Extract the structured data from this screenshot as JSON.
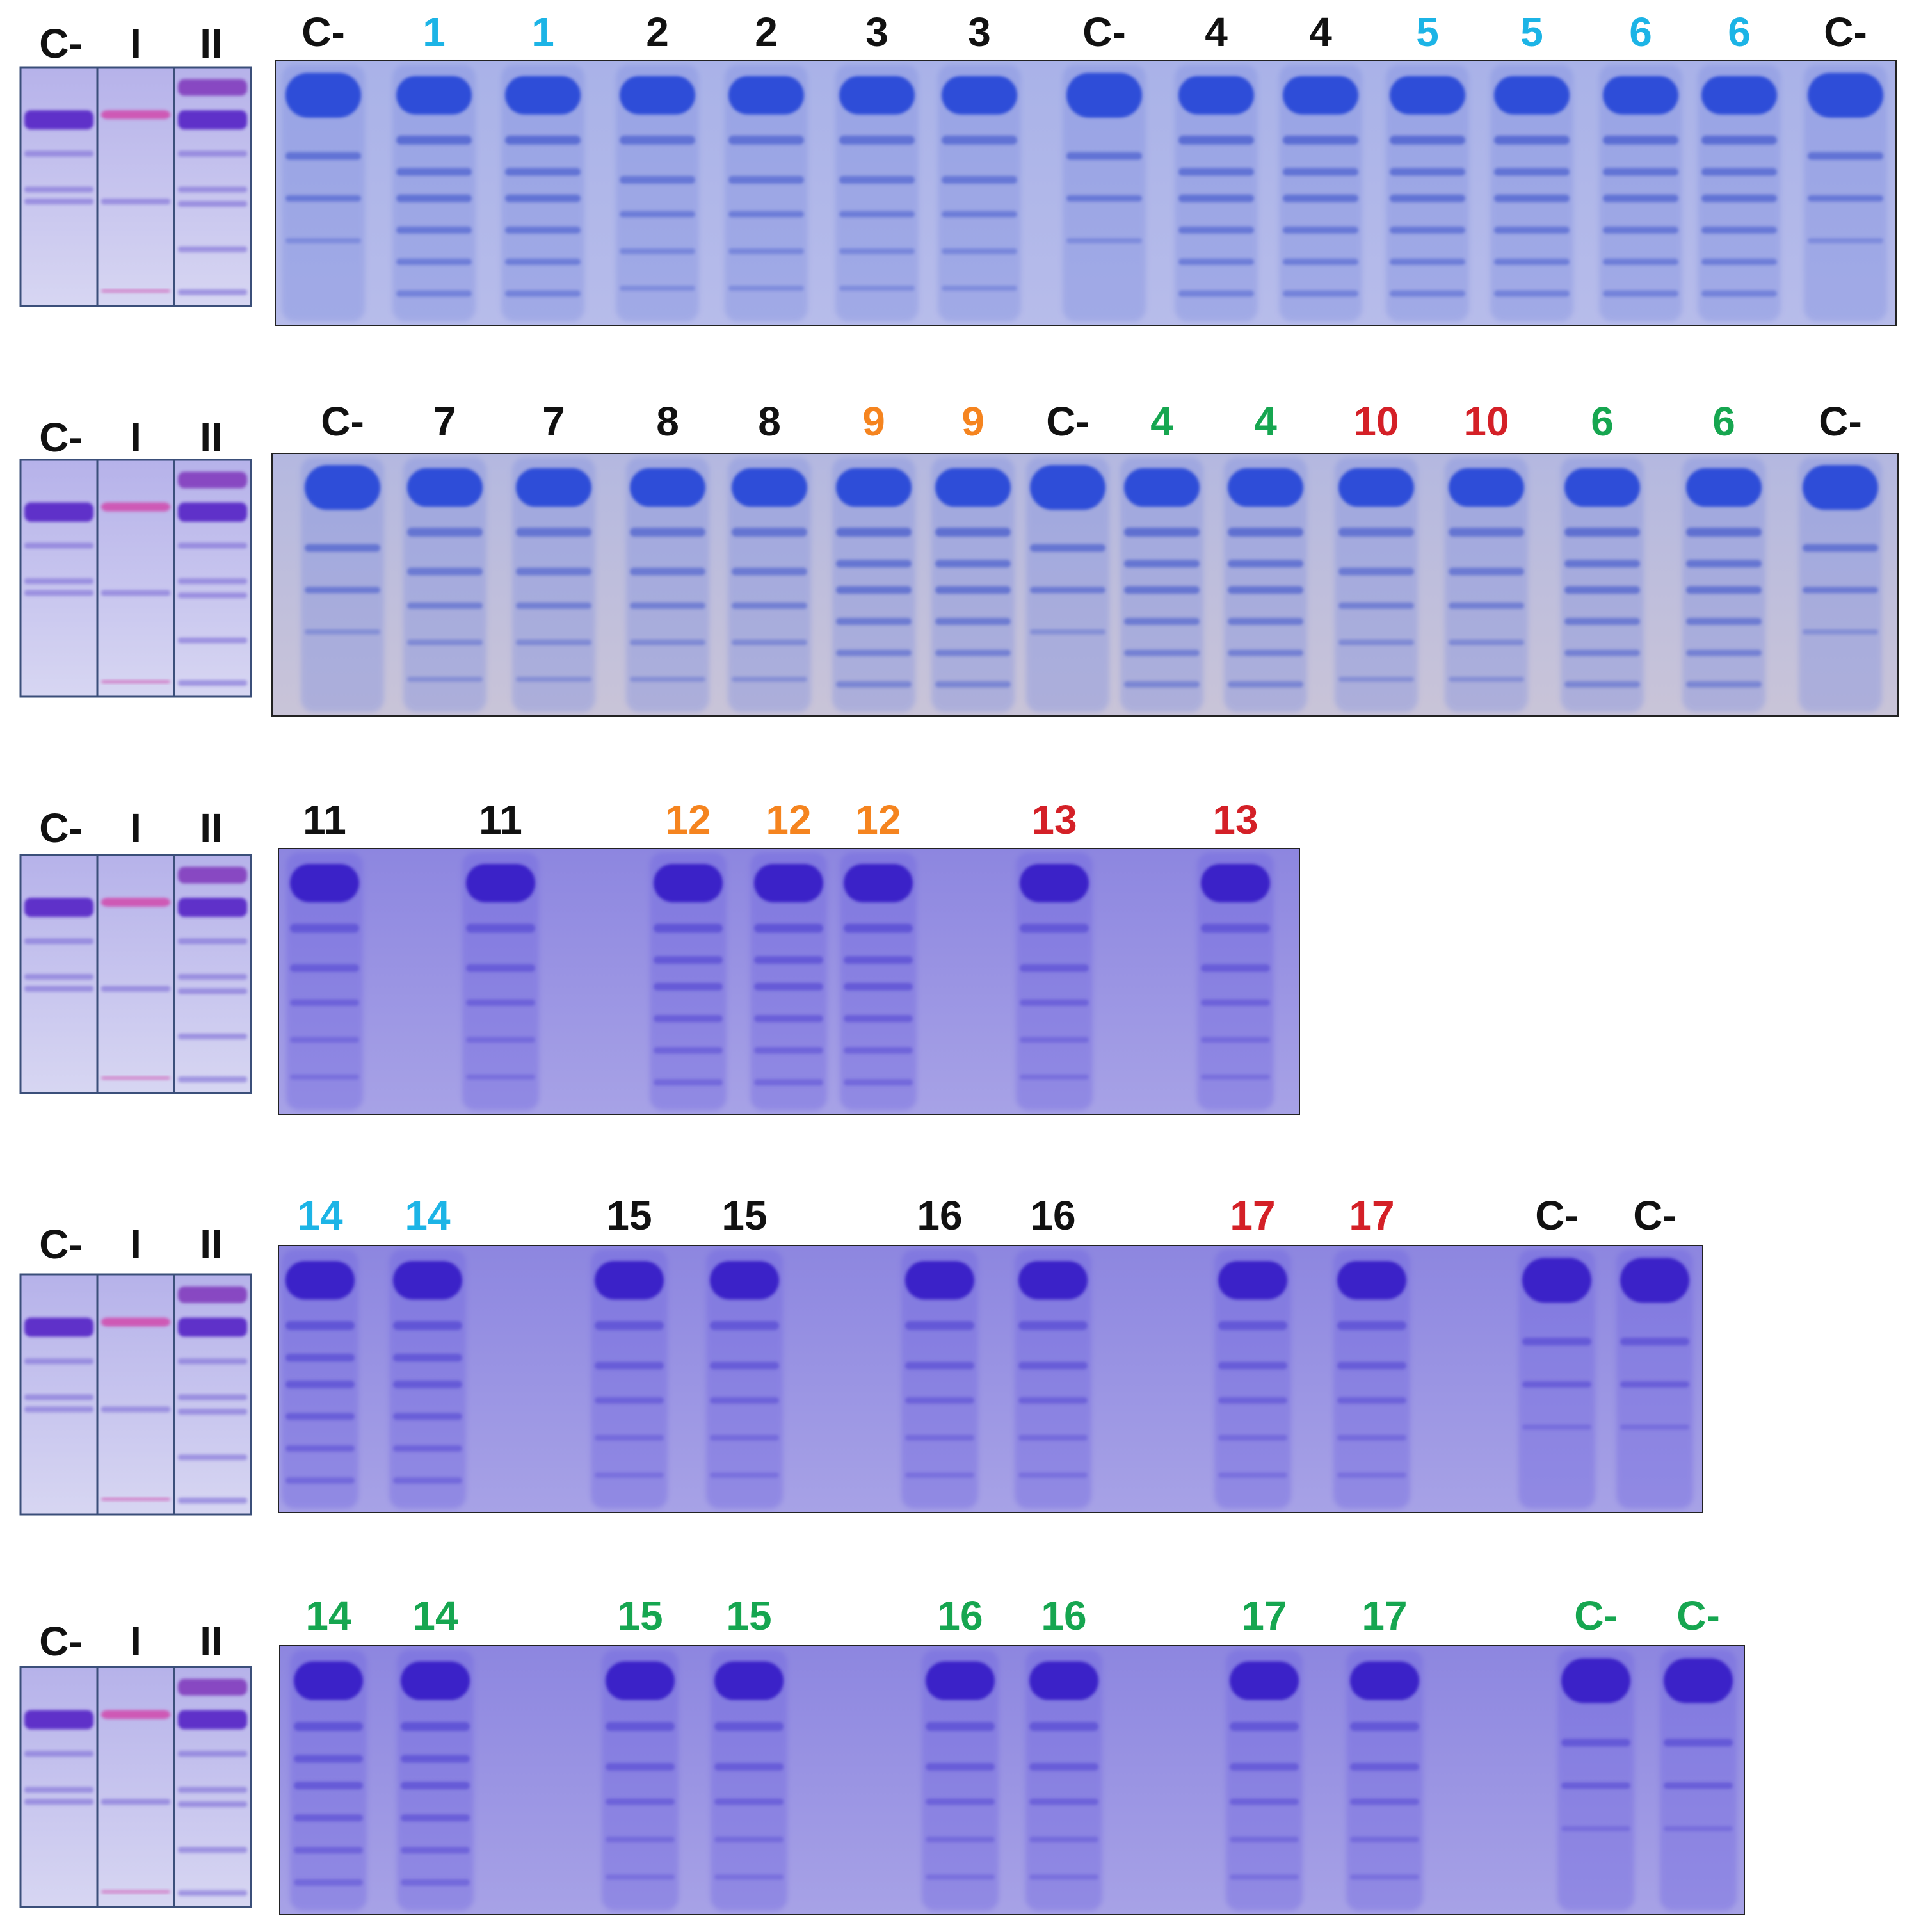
{
  "colors": {
    "black": "#111111",
    "blue": "#1CB4E6",
    "orange": "#F5841F",
    "red": "#D42027",
    "green": "#16A650",
    "gel_blue": "#2F4DD8",
    "gel_violet": "#5A4FD6",
    "gel_bg_a": "#A9B2E8",
    "gel_bg_b": "#8D86E0",
    "marker_pink": "#D04FB0"
  },
  "marker_labels": [
    "C-",
    "I",
    "II"
  ],
  "rows": [
    {
      "id": "row-1",
      "lanes": [
        {
          "text": "C-",
          "color": "black"
        },
        {
          "text": "1",
          "color": "blue"
        },
        {
          "text": "1",
          "color": "blue"
        },
        {
          "text": "2",
          "color": "black"
        },
        {
          "text": "2",
          "color": "black"
        },
        {
          "text": "3",
          "color": "black"
        },
        {
          "text": "3",
          "color": "black"
        },
        {
          "text": "C-",
          "color": "black"
        },
        {
          "text": "4",
          "color": "black"
        },
        {
          "text": "4",
          "color": "black"
        },
        {
          "text": "5",
          "color": "blue"
        },
        {
          "text": "5",
          "color": "blue"
        },
        {
          "text": "6",
          "color": "blue"
        },
        {
          "text": "6",
          "color": "blue"
        },
        {
          "text": "C-",
          "color": "black"
        }
      ]
    },
    {
      "id": "row-2",
      "lanes": [
        {
          "text": "C-",
          "color": "black"
        },
        {
          "text": "7",
          "color": "black"
        },
        {
          "text": "7",
          "color": "black"
        },
        {
          "text": "8",
          "color": "black"
        },
        {
          "text": "8",
          "color": "black"
        },
        {
          "text": "9",
          "color": "orange"
        },
        {
          "text": "9",
          "color": "orange"
        },
        {
          "text": "C-",
          "color": "black"
        },
        {
          "text": "4",
          "color": "green"
        },
        {
          "text": "4",
          "color": "green"
        },
        {
          "text": "10",
          "color": "red"
        },
        {
          "text": "10",
          "color": "red"
        },
        {
          "text": "6",
          "color": "green"
        },
        {
          "text": "6",
          "color": "green"
        },
        {
          "text": "C-",
          "color": "black"
        }
      ]
    },
    {
      "id": "row-3",
      "lanes": [
        {
          "text": "11",
          "color": "black"
        },
        {
          "text": "11",
          "color": "black"
        },
        {
          "text": "12",
          "color": "orange"
        },
        {
          "text": "12",
          "color": "orange"
        },
        {
          "text": "12",
          "color": "orange"
        },
        {
          "text": "13",
          "color": "red"
        },
        {
          "text": "13",
          "color": "red"
        }
      ]
    },
    {
      "id": "row-4",
      "lanes": [
        {
          "text": "14",
          "color": "blue"
        },
        {
          "text": "14",
          "color": "blue"
        },
        {
          "text": "15",
          "color": "black"
        },
        {
          "text": "15",
          "color": "black"
        },
        {
          "text": "16",
          "color": "black"
        },
        {
          "text": "16",
          "color": "black"
        },
        {
          "text": "17",
          "color": "red"
        },
        {
          "text": "17",
          "color": "red"
        },
        {
          "text": "C-",
          "color": "black"
        },
        {
          "text": "C-",
          "color": "black"
        }
      ]
    },
    {
      "id": "row-5",
      "lanes": [
        {
          "text": "14",
          "color": "green"
        },
        {
          "text": "14",
          "color": "green"
        },
        {
          "text": "15",
          "color": "green"
        },
        {
          "text": "15",
          "color": "green"
        },
        {
          "text": "16",
          "color": "green"
        },
        {
          "text": "16",
          "color": "green"
        },
        {
          "text": "17",
          "color": "green"
        },
        {
          "text": "17",
          "color": "green"
        },
        {
          "text": "C-",
          "color": "green"
        },
        {
          "text": "C-",
          "color": "green"
        }
      ]
    }
  ]
}
